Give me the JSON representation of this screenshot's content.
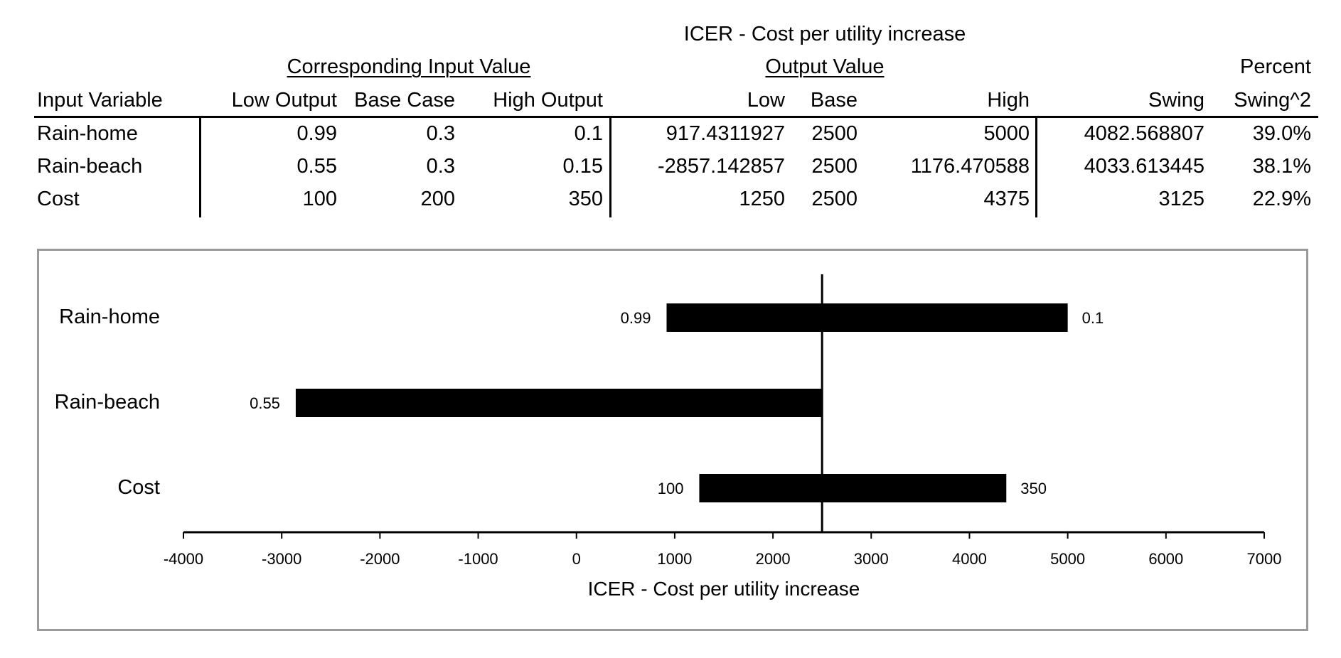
{
  "table": {
    "output_title": "ICER - Cost per utility increase",
    "group_input": "Corresponding Input Value",
    "group_output": "Output Value",
    "header_percent": "Percent",
    "columns": [
      "Input Variable",
      "Low Output",
      "Base Case",
      "High Output",
      "Low",
      "Base",
      "High",
      "Swing",
      "Swing^2"
    ],
    "rows": [
      [
        "Rain-home",
        "0.99",
        "0.3",
        "0.1",
        "917.4311927",
        "2500",
        "5000",
        "4082.568807",
        "39.0%"
      ],
      [
        "Rain-beach",
        "0.55",
        "0.3",
        "0.15",
        "-2857.142857",
        "2500",
        "1176.470588",
        "4033.613445",
        "38.1%"
      ],
      [
        "Cost",
        "100",
        "200",
        "350",
        "1250",
        "2500",
        "4375",
        "3125",
        "22.9%"
      ]
    ]
  },
  "chart_data": {
    "type": "bar",
    "subtype": "tornado",
    "xlabel": "ICER - Cost per utility increase",
    "xlim": [
      -4000,
      7000
    ],
    "xticks": [
      -4000,
      -3000,
      -2000,
      -1000,
      0,
      1000,
      2000,
      3000,
      4000,
      5000,
      6000,
      7000
    ],
    "xtick_labels": [
      "-4000",
      "-3000",
      "-2000",
      "-1000",
      "0",
      "1000",
      "2000",
      "3000",
      "4000",
      "5000",
      "6000",
      "7000"
    ],
    "base_value": 2500,
    "bar_color": "#000000",
    "categories": [
      "Rain-home",
      "Rain-beach",
      "Cost"
    ],
    "bars": [
      {
        "category": "Rain-home",
        "low": 917.4311927,
        "high": 5000,
        "left_label": "0.99",
        "right_label": "0.1"
      },
      {
        "category": "Rain-beach",
        "low": -2857.142857,
        "high": 2500,
        "left_label": "0.55",
        "right_label": ""
      },
      {
        "category": "Cost",
        "low": 1250,
        "high": 4375,
        "left_label": "100",
        "right_label": "350"
      }
    ]
  }
}
